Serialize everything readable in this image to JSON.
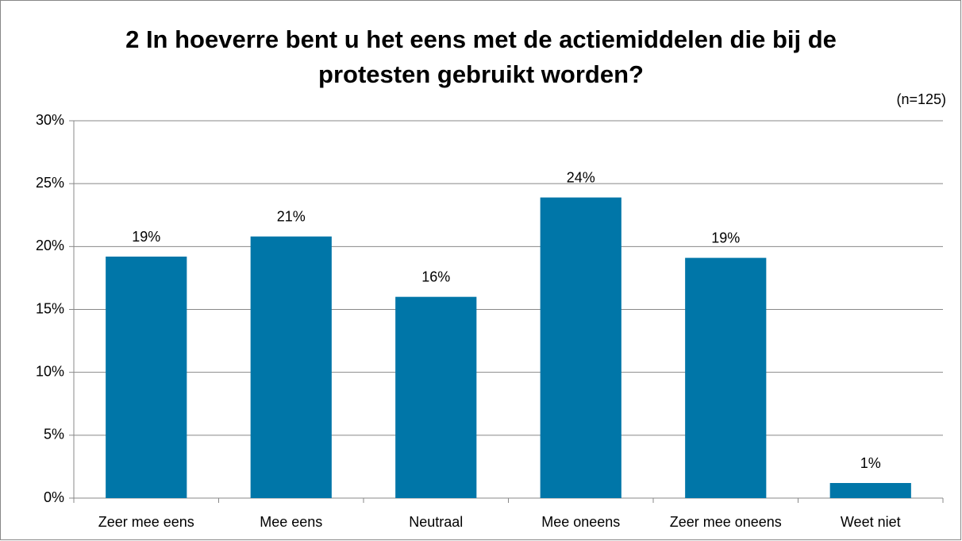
{
  "chart_data": {
    "type": "bar",
    "title": "2 In hoeverre bent u het eens met de actiemiddelen die bij de protesten gebruikt worden?",
    "annotation": "(n=125)",
    "categories": [
      "Zeer mee eens",
      "Mee eens",
      "Neutraal",
      "Mee oneens",
      "Zeer mee oneens",
      "Weet niet"
    ],
    "values": [
      19.2,
      20.8,
      16.0,
      23.9,
      19.1,
      1.2
    ],
    "value_labels": [
      "19%",
      "21%",
      "16%",
      "24%",
      "19%",
      "1%"
    ],
    "color": "#0076a8",
    "ylim": [
      0,
      30
    ],
    "yticks": [
      {
        "value": 0,
        "label": "0%"
      },
      {
        "value": 5,
        "label": "5%"
      },
      {
        "value": 10,
        "label": "10%"
      },
      {
        "value": 15,
        "label": "15%"
      },
      {
        "value": 20,
        "label": "20%"
      },
      {
        "value": 25,
        "label": "25%"
      },
      {
        "value": 30,
        "label": "30%"
      }
    ],
    "grid": true
  }
}
